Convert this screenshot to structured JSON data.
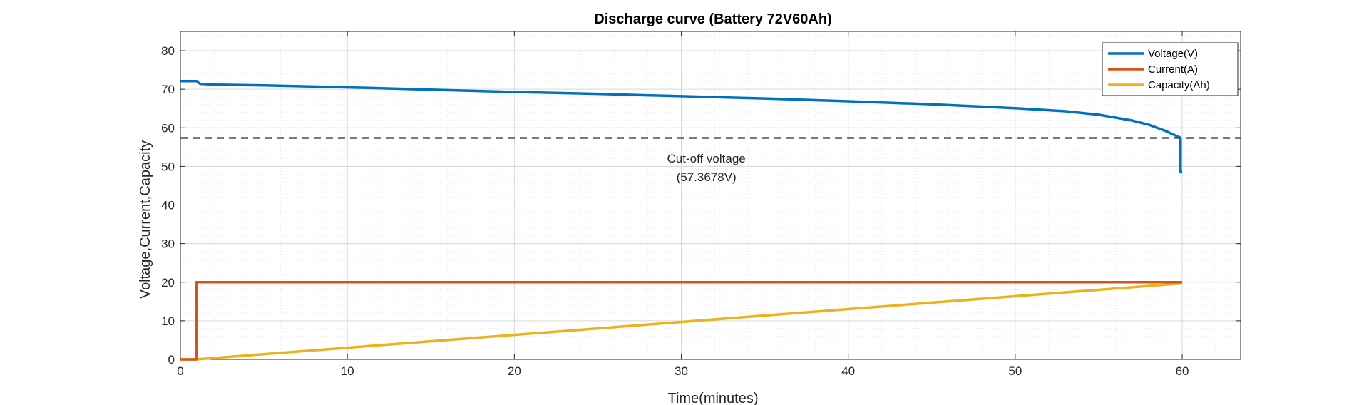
{
  "chart_data": {
    "type": "line",
    "title": "Discharge curve (Battery 72V60Ah)",
    "xlabel": "Time(minutes)",
    "ylabel": "Voltage,Current,Capacity",
    "xlim": [
      0,
      63.5
    ],
    "ylim": [
      0,
      85
    ],
    "xticks": [
      0,
      10,
      20,
      30,
      40,
      50,
      60
    ],
    "yticks": [
      0,
      10,
      20,
      30,
      40,
      50,
      60,
      70,
      80
    ],
    "grid": true,
    "minor_grid": true,
    "legend_position": "top-right",
    "series": [
      {
        "name": "Voltage(V)",
        "color": "#0072BD",
        "x": [
          0,
          1,
          1.05,
          1.2,
          2,
          5,
          10,
          15,
          20,
          25,
          30,
          35,
          40,
          45,
          50,
          53,
          55,
          57,
          58,
          59,
          59.5,
          59.9,
          59.9,
          60
        ],
        "y": [
          72.1,
          72.1,
          71.8,
          71.4,
          71.2,
          71.0,
          70.5,
          69.9,
          69.3,
          68.8,
          68.2,
          67.6,
          66.9,
          66.1,
          65.1,
          64.3,
          63.4,
          61.9,
          60.8,
          59.2,
          58.2,
          57.4,
          48.5,
          48.5
        ]
      },
      {
        "name": "Current(A)",
        "color": "#D95319",
        "x": [
          0,
          0.95,
          0.95,
          60
        ],
        "y": [
          0,
          0,
          20,
          20
        ]
      },
      {
        "name": "Capacity(Ah)",
        "color": "#EDB120",
        "x": [
          0,
          0.95,
          60
        ],
        "y": [
          0,
          0,
          19.7
        ]
      }
    ],
    "reference_line": {
      "y": 57.3678,
      "color": "#4D4D4D"
    },
    "annotation": {
      "lines": [
        "Cut-off voltage",
        "(57.3678V)"
      ],
      "x": 31.5,
      "y": 51.0
    }
  }
}
